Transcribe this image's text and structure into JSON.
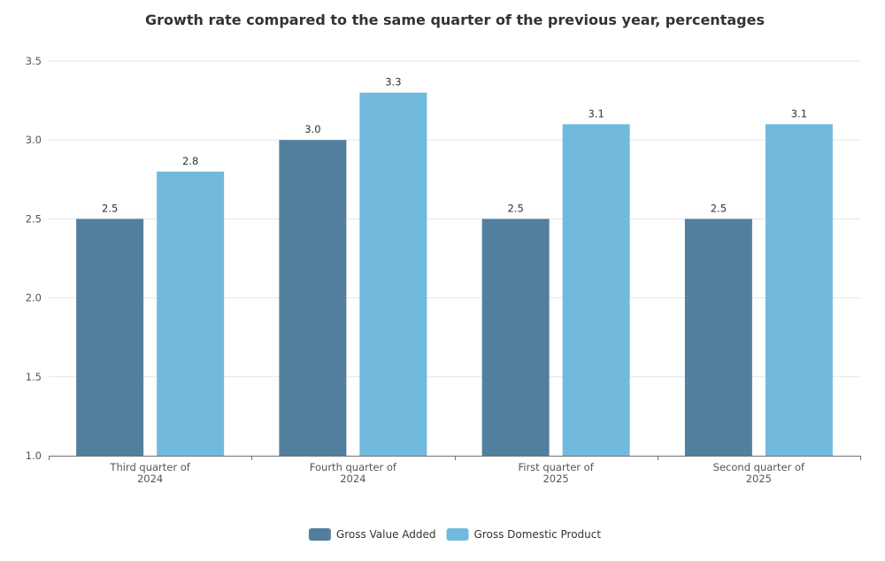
{
  "chart_data": {
    "type": "bar",
    "title": "Growth rate compared to the same quarter of the previous year, percentages",
    "categories": [
      [
        "Third quarter of",
        "2024"
      ],
      [
        "Fourth quarter of",
        "2024"
      ],
      [
        "First quarter of",
        "2025"
      ],
      [
        "Second quarter of",
        "2025"
      ]
    ],
    "series": [
      {
        "name": "Gross Value Added",
        "color": "#537f9e",
        "values": [
          2.5,
          3.0,
          2.5,
          2.5
        ]
      },
      {
        "name": "Gross Domestic Product",
        "color": "#71bade",
        "values": [
          2.8,
          3.3,
          3.1,
          3.1
        ]
      }
    ],
    "ylim": [
      1.0,
      3.5
    ],
    "yticks": [
      "1.0",
      "1.5",
      "2.0",
      "2.5",
      "3.0",
      "3.5"
    ],
    "xlabel": "",
    "ylabel": "",
    "grid": true,
    "legend_position": "bottom-center",
    "value_format_decimals": 1
  }
}
